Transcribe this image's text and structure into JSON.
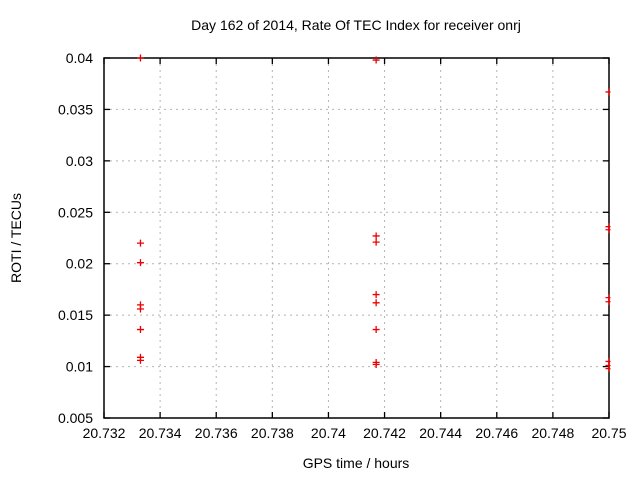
{
  "chart_data": {
    "type": "scatter",
    "title": "Day 162 of 2014, Rate Of TEC Index for receiver onrj",
    "xlabel": "GPS time / hours",
    "ylabel": "ROTI / TECUs",
    "xlim": [
      20.732,
      20.75
    ],
    "ylim": [
      0.005,
      0.04
    ],
    "x_ticks": [
      20.732,
      20.734,
      20.736,
      20.738,
      20.74,
      20.742,
      20.744,
      20.746,
      20.748,
      20.75
    ],
    "x_tick_labels": [
      "20.732",
      "20.734",
      "20.736",
      "20.738",
      "20.74",
      "20.742",
      "20.744",
      "20.746",
      "20.748",
      "20.75"
    ],
    "y_ticks": [
      0.005,
      0.01,
      0.015,
      0.02,
      0.025,
      0.03,
      0.035,
      0.04
    ],
    "y_tick_labels": [
      "0.005",
      "0.01",
      "0.015",
      "0.02",
      "0.025",
      "0.03",
      "0.035",
      "0.04"
    ],
    "grid": true,
    "legend": false,
    "marker": "plus",
    "marker_color": "#ee0000",
    "grid_color": "#b4b4b4",
    "border_color": "#000000",
    "background_color": "#ffffff",
    "series": [
      {
        "name": "ROTI",
        "points": [
          [
            20.7333,
            0.04
          ],
          [
            20.7333,
            0.022
          ],
          [
            20.7333,
            0.0201
          ],
          [
            20.7333,
            0.016
          ],
          [
            20.7333,
            0.0156
          ],
          [
            20.7333,
            0.0136
          ],
          [
            20.7333,
            0.0109
          ],
          [
            20.7333,
            0.0106
          ],
          [
            20.7417,
            0.0398
          ],
          [
            20.7417,
            0.0227
          ],
          [
            20.7417,
            0.0221
          ],
          [
            20.7417,
            0.017
          ],
          [
            20.7417,
            0.0162
          ],
          [
            20.7417,
            0.0136
          ],
          [
            20.7417,
            0.0104
          ],
          [
            20.7417,
            0.0102
          ],
          [
            20.75,
            0.0367
          ],
          [
            20.75,
            0.0236
          ],
          [
            20.75,
            0.0233
          ],
          [
            20.75,
            0.0167
          ],
          [
            20.75,
            0.0163
          ],
          [
            20.75,
            0.0105
          ],
          [
            20.75,
            0.0101
          ],
          [
            20.75,
            0.0098
          ]
        ]
      }
    ]
  }
}
